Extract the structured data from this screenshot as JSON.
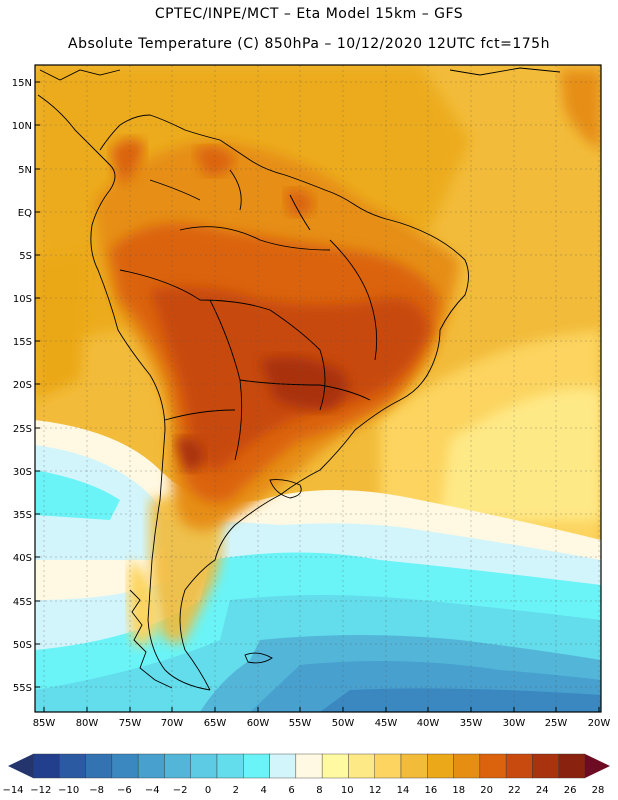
{
  "header": {
    "line1": "CPTEC/INPE/MCT –  Eta Model 15km – GFS",
    "line2": "Absolute Temperature (C) 850hPa – 10/12/2020 12UTC fct=175h"
  },
  "axes": {
    "lat_labels": [
      "15N",
      "10N",
      "5N",
      "EQ",
      "5S",
      "10S",
      "15S",
      "20S",
      "25S",
      "30S",
      "35S",
      "40S",
      "45S",
      "50S",
      "55S"
    ],
    "lon_labels": [
      "85W",
      "80W",
      "75W",
      "70W",
      "65W",
      "60W",
      "55W",
      "50W",
      "45W",
      "40W",
      "35W",
      "30W",
      "25W",
      "20W"
    ]
  },
  "legend": {
    "labels": [
      "-14",
      "-12",
      "-10",
      "-8",
      "-6",
      "-4",
      "-2",
      "0",
      "2",
      "4",
      "6",
      "8",
      "10",
      "12",
      "14",
      "16",
      "18",
      "20",
      "22",
      "24",
      "26",
      "28"
    ],
    "colors": [
      "#213f8d",
      "#2b5aa3",
      "#3373b2",
      "#3b88c0",
      "#47a0cd",
      "#53b6d9",
      "#5dcbe3",
      "#63dceb",
      "#6af4f7",
      "#d2f5fb",
      "#fff8e2",
      "#fffaa2",
      "#fee987",
      "#fcd45f",
      "#f2bb3a",
      "#eba819",
      "#e68e12",
      "#db630e",
      "#c84a0e",
      "#a9320f",
      "#8a2210"
    ],
    "left_arrow_color": "#24356e",
    "right_arrow_color": "#6c0b22"
  }
}
